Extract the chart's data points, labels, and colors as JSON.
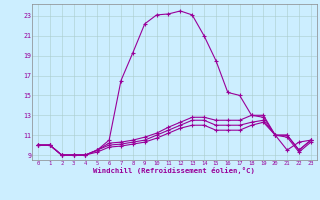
{
  "xlabel": "Windchill (Refroidissement éolien,°C)",
  "bg_color": "#cceeff",
  "grid_color": "#aacccc",
  "line_color": "#990099",
  "x_ticks": [
    0,
    1,
    2,
    3,
    4,
    5,
    6,
    7,
    8,
    9,
    10,
    11,
    12,
    13,
    14,
    15,
    16,
    17,
    18,
    19,
    20,
    21,
    22,
    23
  ],
  "y_ticks": [
    9,
    11,
    13,
    15,
    17,
    19,
    21,
    23
  ],
  "xlim": [
    -0.5,
    23.5
  ],
  "ylim": [
    8.5,
    24.2
  ],
  "line1_y": [
    10.0,
    10.0,
    9.0,
    9.0,
    9.0,
    9.5,
    10.5,
    16.5,
    19.3,
    22.2,
    23.1,
    23.2,
    23.5,
    23.1,
    21.0,
    18.5,
    15.3,
    15.0,
    13.0,
    12.8,
    11.0,
    9.5,
    10.3,
    10.5
  ],
  "line2_y": [
    10.0,
    10.0,
    9.0,
    9.0,
    9.0,
    9.5,
    10.2,
    10.3,
    10.5,
    10.8,
    11.2,
    11.8,
    12.3,
    12.8,
    12.8,
    12.5,
    12.5,
    12.5,
    13.0,
    13.0,
    11.0,
    11.0,
    9.5,
    10.5
  ],
  "line3_y": [
    10.0,
    10.0,
    9.0,
    9.0,
    9.0,
    9.5,
    10.0,
    10.1,
    10.3,
    10.5,
    11.0,
    11.5,
    12.0,
    12.5,
    12.5,
    12.0,
    12.0,
    12.0,
    12.3,
    12.5,
    11.0,
    11.0,
    9.5,
    10.5
  ],
  "line4_y": [
    10.0,
    10.0,
    9.0,
    9.0,
    9.0,
    9.3,
    9.8,
    9.9,
    10.1,
    10.3,
    10.7,
    11.2,
    11.7,
    12.0,
    12.0,
    11.5,
    11.5,
    11.5,
    12.0,
    12.3,
    11.0,
    10.8,
    9.3,
    10.3
  ]
}
